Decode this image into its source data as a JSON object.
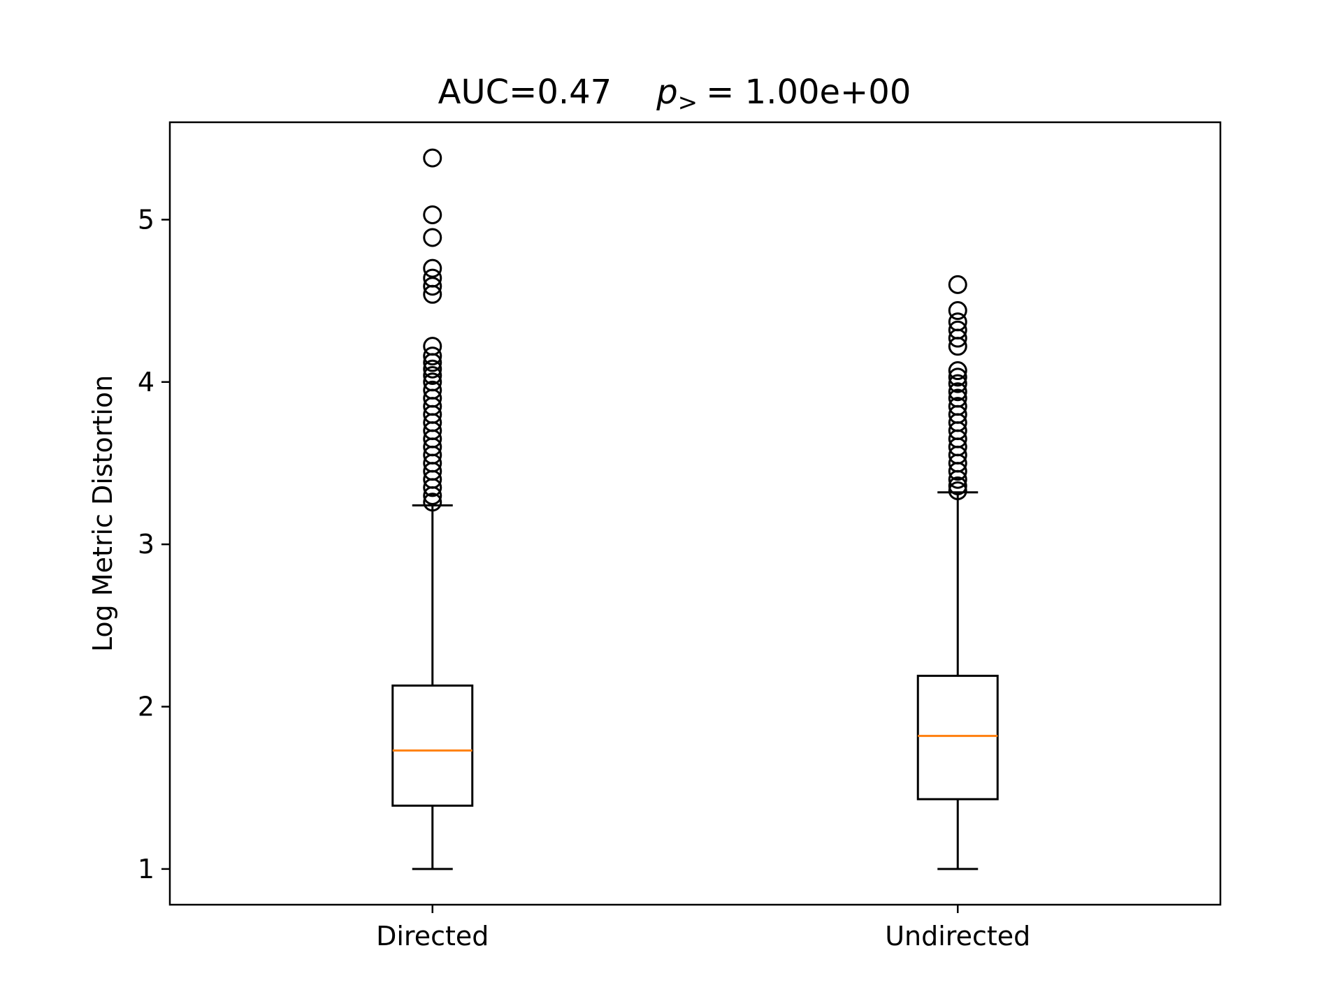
{
  "chart_data": {
    "type": "box",
    "title": {
      "main": "AUC=0.47",
      "p_symbol": "p",
      "p_subscript": ">",
      "p_value": "= 1.00e+00"
    },
    "xlabel": "",
    "ylabel": "Log Metric Distortion",
    "ylim": [
      0.78,
      5.6
    ],
    "yticks": [
      1,
      2,
      3,
      4,
      5
    ],
    "categories": [
      "Directed",
      "Undirected"
    ],
    "median_color": "#ff7f0e",
    "box_color": "#000000",
    "series": [
      {
        "category": "Directed",
        "whisker_low": 1.0,
        "q1": 1.39,
        "median": 1.73,
        "q3": 2.13,
        "whisker_high": 3.24,
        "outliers": [
          5.38,
          5.03,
          4.89,
          4.7,
          4.64,
          4.59,
          4.54,
          4.22,
          4.16,
          4.12,
          4.08,
          4.04,
          4.0,
          3.95,
          3.9,
          3.85,
          3.8,
          3.75,
          3.7,
          3.65,
          3.6,
          3.55,
          3.5,
          3.45,
          3.4,
          3.35,
          3.3,
          3.26
        ]
      },
      {
        "category": "Undirected",
        "whisker_low": 1.0,
        "q1": 1.43,
        "median": 1.82,
        "q3": 2.19,
        "whisker_high": 3.32,
        "outliers": [
          4.6,
          4.44,
          4.37,
          4.32,
          4.27,
          4.22,
          4.07,
          4.03,
          3.99,
          3.94,
          3.9,
          3.85,
          3.8,
          3.75,
          3.7,
          3.65,
          3.6,
          3.55,
          3.5,
          3.45,
          3.4,
          3.36,
          3.33
        ]
      }
    ]
  }
}
